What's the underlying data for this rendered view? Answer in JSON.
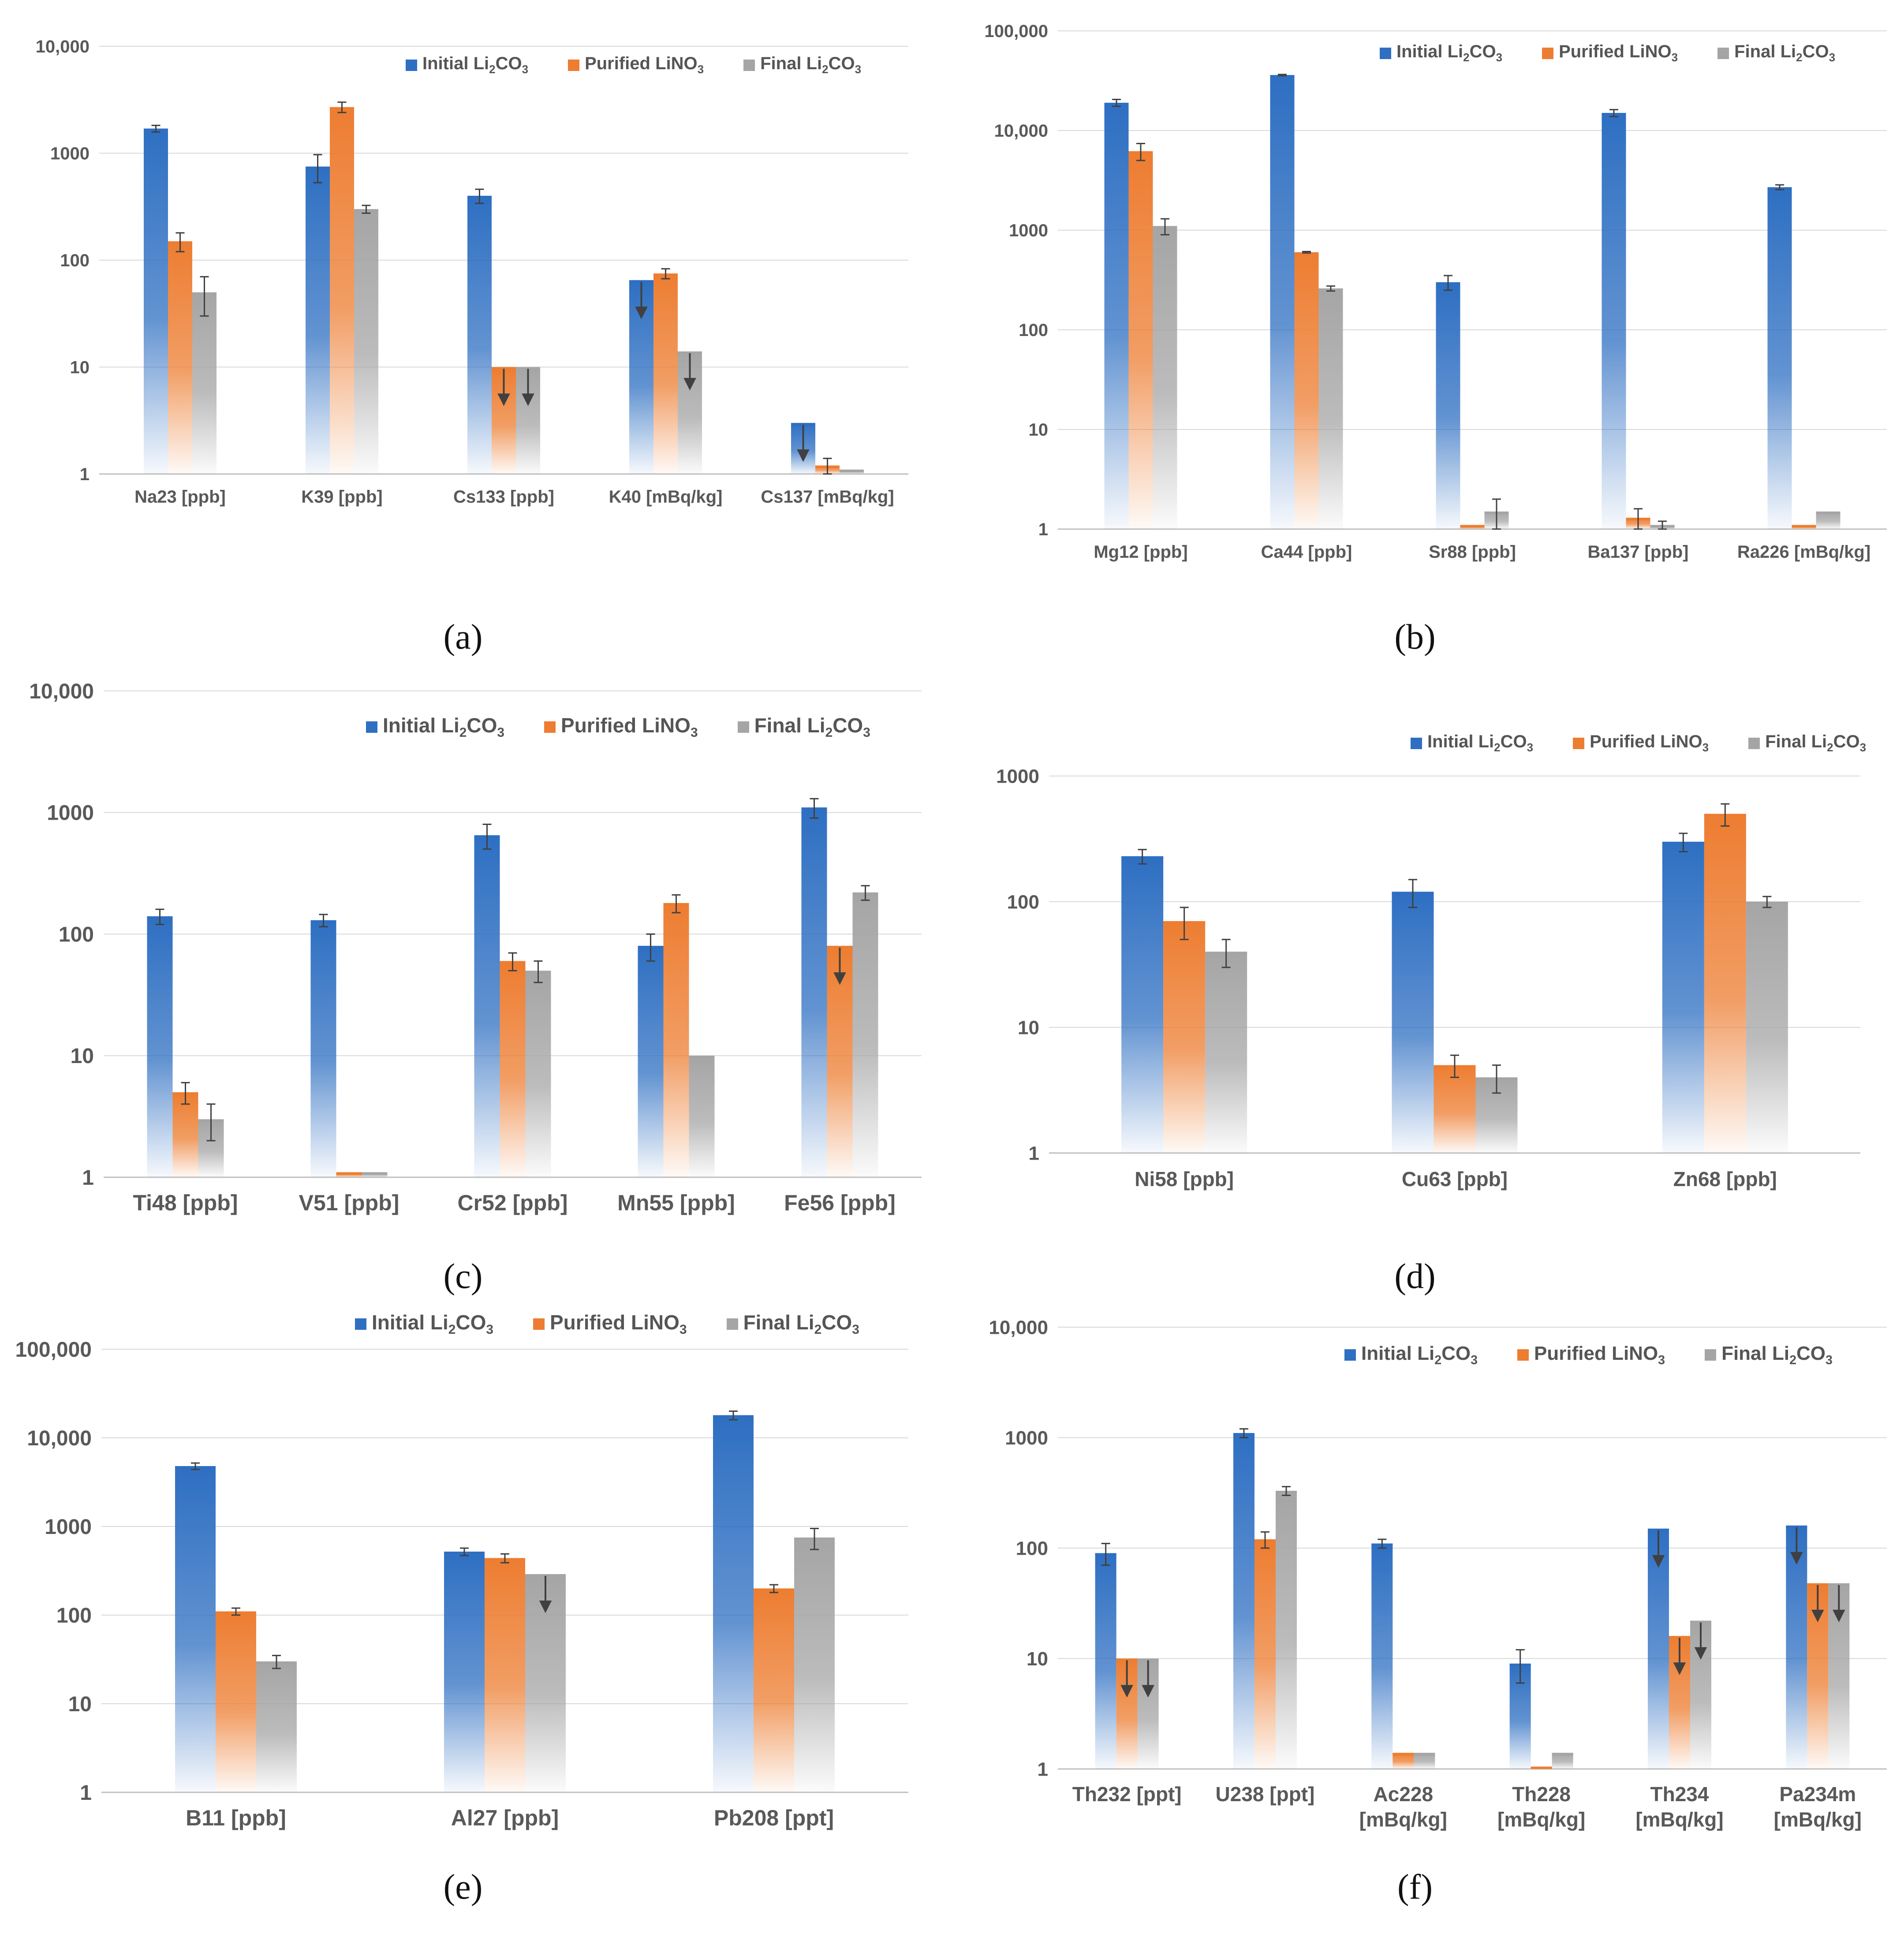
{
  "colors": {
    "initial": "#2e6fc2",
    "purified": "#ed7d31",
    "final": "#a5a5a5",
    "grid": "#d9d9d9",
    "axis": "#bfbfbf",
    "text": "#595959"
  },
  "legend": [
    {
      "base": "Initial Li",
      "sub1": "2",
      "mid": "CO",
      "sub2": "3"
    },
    {
      "base": "Purified LiNO",
      "sub1": "",
      "mid": "",
      "sub2": "3"
    },
    {
      "base": "Final Li",
      "sub1": "2",
      "mid": "CO",
      "sub2": "3"
    }
  ],
  "chart_data": [
    {
      "id": "a",
      "label": "(a)",
      "type": "bar",
      "scale": "log",
      "ylim": [
        1,
        10000
      ],
      "ytick_labels": [
        "1",
        "10",
        "100",
        "1000",
        "10,000"
      ],
      "categories": [
        "Na23 [ppb]",
        "K39 [ppb]",
        "Cs133 [ppb]",
        "K40 [mBq/kg]",
        "Cs137 [mBq/kg]"
      ],
      "series": [
        {
          "name": "Initial Li2CO3",
          "values": [
            1700,
            750,
            400,
            65,
            3
          ],
          "errors": [
            120,
            220,
            60,
            0,
            0
          ],
          "upper_limit": [
            false,
            false,
            false,
            true,
            true
          ]
        },
        {
          "name": "Purified LiNO3",
          "values": [
            150,
            2700,
            10,
            75,
            1.2
          ],
          "errors": [
            30,
            300,
            0,
            8,
            0.2
          ],
          "upper_limit": [
            false,
            false,
            true,
            false,
            false
          ]
        },
        {
          "name": "Final Li2CO3",
          "values": [
            50,
            300,
            10,
            14,
            1.1
          ],
          "errors": [
            20,
            25,
            0,
            0,
            0
          ],
          "upper_limit": [
            false,
            false,
            true,
            true,
            false
          ]
        }
      ]
    },
    {
      "id": "b",
      "label": "(b)",
      "type": "bar",
      "scale": "log",
      "ylim": [
        1,
        100000
      ],
      "ytick_labels": [
        "1",
        "10",
        "100",
        "1000",
        "10,000",
        "100,000"
      ],
      "categories": [
        "Mg12 [ppb]",
        "Ca44 [ppb]",
        "Sr88 [ppb]",
        "Ba137 [ppb]",
        "Ra226 [mBq/kg]"
      ],
      "series": [
        {
          "name": "Initial Li2CO3",
          "values": [
            19000,
            36000,
            300,
            15000,
            2700
          ],
          "errors": [
            1500,
            500,
            50,
            1200,
            150
          ],
          "upper_limit": [
            false,
            false,
            false,
            false,
            false
          ]
        },
        {
          "name": "Purified LiNO3",
          "values": [
            6200,
            600,
            1.1,
            1.3,
            1.1
          ],
          "errors": [
            1200,
            10,
            0,
            0.3,
            0
          ],
          "upper_limit": [
            false,
            false,
            false,
            false,
            false
          ]
        },
        {
          "name": "Final Li2CO3",
          "values": [
            1100,
            260,
            1.5,
            1.1,
            1.5
          ],
          "errors": [
            200,
            15,
            0.5,
            0.1,
            0
          ],
          "upper_limit": [
            false,
            false,
            false,
            false,
            false
          ]
        }
      ]
    },
    {
      "id": "c",
      "label": "(c)",
      "type": "bar",
      "scale": "log",
      "ylim": [
        1,
        10000
      ],
      "ytick_labels": [
        "1",
        "10",
        "100",
        "1000",
        "10,000"
      ],
      "categories": [
        "Ti48 [ppb]",
        "V51 [ppb]",
        "Cr52 [ppb]",
        "Mn55 [ppb]",
        "Fe56 [ppb]"
      ],
      "series": [
        {
          "name": "Initial Li2CO3",
          "values": [
            140,
            130,
            650,
            80,
            1100
          ],
          "errors": [
            20,
            15,
            150,
            20,
            200
          ],
          "upper_limit": [
            false,
            false,
            false,
            false,
            false
          ]
        },
        {
          "name": "Purified LiNO3",
          "values": [
            5,
            1.1,
            60,
            180,
            80
          ],
          "errors": [
            1,
            0,
            10,
            30,
            0
          ],
          "upper_limit": [
            false,
            false,
            false,
            false,
            true
          ]
        },
        {
          "name": "Final Li2CO3",
          "values": [
            3,
            1.1,
            50,
            10,
            220
          ],
          "errors": [
            1,
            0,
            10,
            0,
            30
          ],
          "upper_limit": [
            false,
            false,
            false,
            false,
            false
          ]
        }
      ]
    },
    {
      "id": "d",
      "label": "(d)",
      "type": "bar",
      "scale": "log",
      "ylim": [
        1,
        1000
      ],
      "ytick_labels": [
        "1",
        "10",
        "100",
        "1000"
      ],
      "categories": [
        "Ni58 [ppb]",
        "Cu63 [ppb]",
        "Zn68 [ppb]"
      ],
      "series": [
        {
          "name": "Initial Li2CO3",
          "values": [
            230,
            120,
            300
          ],
          "errors": [
            30,
            30,
            50
          ],
          "upper_limit": [
            false,
            false,
            false
          ]
        },
        {
          "name": "Purified LiNO3",
          "values": [
            70,
            5,
            500
          ],
          "errors": [
            20,
            1,
            100
          ],
          "upper_limit": [
            false,
            false,
            false
          ]
        },
        {
          "name": "Final Li2CO3",
          "values": [
            40,
            4,
            100
          ],
          "errors": [
            10,
            1,
            10
          ],
          "upper_limit": [
            false,
            false,
            false
          ]
        }
      ]
    },
    {
      "id": "e",
      "label": "(e)",
      "type": "bar",
      "scale": "log",
      "ylim": [
        1,
        100000
      ],
      "ytick_labels": [
        "1",
        "10",
        "100",
        "1000",
        "10,000",
        "100,000"
      ],
      "categories": [
        "B11 [ppb]",
        "Al27 [ppb]",
        "Pb208 [ppt]"
      ],
      "series": [
        {
          "name": "Initial Li2CO3",
          "values": [
            4800,
            520,
            18000
          ],
          "errors": [
            400,
            50,
            2000
          ],
          "upper_limit": [
            false,
            false,
            false
          ]
        },
        {
          "name": "Purified LiNO3",
          "values": [
            110,
            440,
            200
          ],
          "errors": [
            10,
            50,
            20
          ],
          "upper_limit": [
            false,
            false,
            false
          ]
        },
        {
          "name": "Final Li2CO3",
          "values": [
            30,
            290,
            750
          ],
          "errors": [
            5,
            0,
            200
          ],
          "upper_limit": [
            false,
            true,
            false
          ]
        }
      ]
    },
    {
      "id": "f",
      "label": "(f)",
      "type": "bar",
      "scale": "log",
      "ylim": [
        1,
        10000
      ],
      "ytick_labels": [
        "1",
        "10",
        "100",
        "1000",
        "10,000"
      ],
      "categories": [
        [
          "Th232 [ppt]"
        ],
        [
          "U238 [ppt]"
        ],
        [
          "Ac228",
          "[mBq/kg]"
        ],
        [
          "Th228",
          "[mBq/kg]"
        ],
        [
          "Th234",
          "[mBq/kg]"
        ],
        [
          "Pa234m",
          "[mBq/kg]"
        ]
      ],
      "series": [
        {
          "name": "Initial Li2CO3",
          "values": [
            90,
            1100,
            110,
            9,
            150,
            160
          ],
          "errors": [
            20,
            100,
            10,
            3,
            0,
            0
          ],
          "upper_limit": [
            false,
            false,
            false,
            false,
            true,
            true
          ]
        },
        {
          "name": "Purified LiNO3",
          "values": [
            10,
            120,
            1.4,
            1.05,
            16,
            48
          ],
          "errors": [
            0,
            20,
            0,
            0,
            0,
            0
          ],
          "upper_limit": [
            true,
            false,
            false,
            false,
            true,
            true
          ]
        },
        {
          "name": "Final Li2CO3",
          "values": [
            10,
            330,
            1.4,
            1.4,
            22,
            48
          ],
          "errors": [
            0,
            30,
            0,
            0,
            0,
            0
          ],
          "upper_limit": [
            true,
            false,
            false,
            false,
            true,
            true
          ]
        }
      ]
    }
  ]
}
